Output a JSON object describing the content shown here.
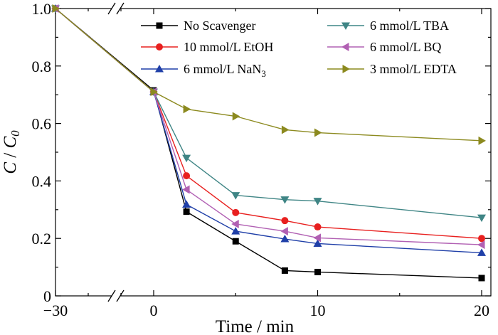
{
  "chart_data": {
    "type": "line",
    "xlabel": "Time / min",
    "ylabel": "C / C0",
    "ylabel_parts": {
      "main": "C",
      "sep": " / ",
      "main2": "C",
      "sub": "0"
    },
    "xlim": [
      -30,
      20
    ],
    "ylim": [
      0,
      1.0
    ],
    "x_axis_break": true,
    "x_ticks": [
      -30,
      0,
      10,
      20
    ],
    "x_tick_labels": [
      "−30",
      "0",
      "10",
      "20"
    ],
    "y_ticks": [
      0,
      0.2,
      0.4,
      0.6,
      0.8,
      1.0
    ],
    "y_tick_labels": [
      "0",
      "0.2",
      "0.4",
      "0.6",
      "0.8",
      "1.0"
    ],
    "legend_position": "top-right",
    "grid": false,
    "series": [
      {
        "name": "No Scavenger",
        "color": "#000000",
        "marker": "square",
        "x": [
          -30,
          0,
          2,
          5,
          8,
          10,
          20
        ],
        "y": [
          1.0,
          0.715,
          0.293,
          0.19,
          0.088,
          0.083,
          0.062
        ]
      },
      {
        "name": "10 mmol/L EtOH",
        "color": "#e8201f",
        "marker": "circle",
        "x": [
          -30,
          0,
          2,
          5,
          8,
          10,
          20
        ],
        "y": [
          1.0,
          0.71,
          0.418,
          0.29,
          0.262,
          0.24,
          0.2
        ]
      },
      {
        "name": "6 mmol/L NaN3",
        "name_base": "6 mmol/L NaN",
        "name_sub": "3",
        "color": "#1f3fa8",
        "marker": "triangle-up",
        "x": [
          -30,
          0,
          2,
          5,
          8,
          10,
          20
        ],
        "y": [
          1.0,
          0.71,
          0.318,
          0.225,
          0.198,
          0.182,
          0.15
        ]
      },
      {
        "name": "6 mmol/L TBA",
        "color": "#3f8585",
        "marker": "triangle-down",
        "x": [
          -30,
          0,
          2,
          5,
          8,
          10,
          20
        ],
        "y": [
          1.0,
          0.71,
          0.48,
          0.35,
          0.335,
          0.33,
          0.272
        ]
      },
      {
        "name": "6 mmol/L BQ",
        "color": "#b160b3",
        "marker": "triangle-left",
        "x": [
          -30,
          0,
          2,
          5,
          8,
          10,
          20
        ],
        "y": [
          1.0,
          0.71,
          0.37,
          0.25,
          0.225,
          0.202,
          0.178
        ]
      },
      {
        "name": "3 mmol/L  EDTA",
        "color": "#8c8a1f",
        "marker": "triangle-right",
        "x": [
          -30,
          0,
          2,
          5,
          8,
          10,
          20
        ],
        "y": [
          1.0,
          0.71,
          0.65,
          0.625,
          0.578,
          0.568,
          0.54
        ]
      }
    ]
  }
}
